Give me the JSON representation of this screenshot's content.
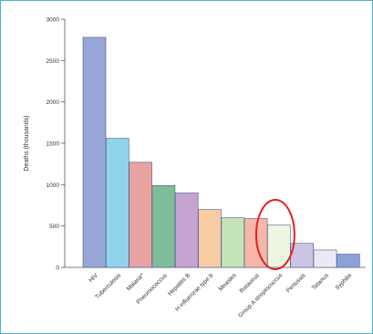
{
  "chart_data": {
    "type": "bar",
    "ylabel": "Deaths (thousands)",
    "ylim": [
      0,
      3000
    ],
    "yticks": [
      0,
      500,
      1000,
      1500,
      2000,
      2500,
      3000
    ],
    "yticks_text": [
      "0",
      "500",
      "1000",
      "1500",
      "2000",
      "2500",
      "3000"
    ],
    "categories": [
      "HIV",
      "Tuberculosis",
      "Malaria*",
      "Pneumococcus",
      "Hepatitis B",
      "H influenzae type b",
      "Measles",
      "Rotavirus",
      "Group A streptococcus",
      "Pertussis",
      "Tetanus",
      "Syphilis"
    ],
    "values": [
      2780,
      1560,
      1270,
      990,
      900,
      700,
      600,
      590,
      510,
      290,
      210,
      160
    ],
    "colors": [
      "#97a7d8",
      "#8fd4ea",
      "#e7a3a1",
      "#7fbc98",
      "#c6a4d1",
      "#f8cca3",
      "#c3e4b9",
      "#f5b8a8",
      "#eef6e2",
      "#cec3e3",
      "#ece8f5",
      "#8ba2d9"
    ],
    "highlight": {
      "category": "Group A streptococcus",
      "shape": "ellipse",
      "color": "#e32222"
    },
    "grid": false,
    "legend": "none"
  }
}
